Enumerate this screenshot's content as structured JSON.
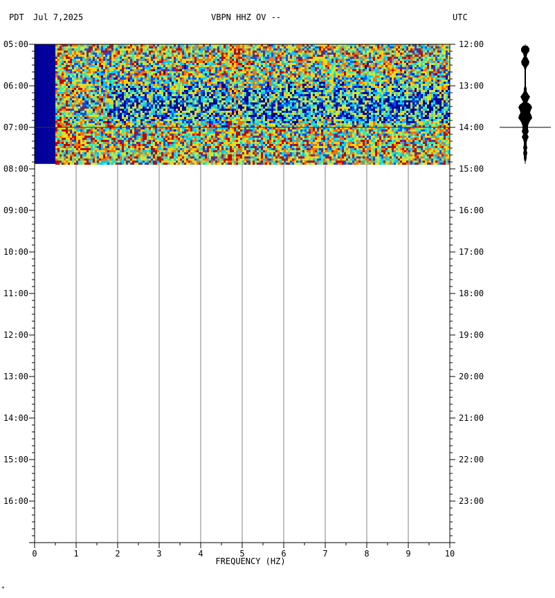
{
  "header": {
    "left_tz": "PDT",
    "date": "Jul 7,2025",
    "station": "VBPN HHZ OV --",
    "right_tz": "UTC"
  },
  "chart_data": {
    "type": "heatmap",
    "title": "VBPN HHZ OV --",
    "xlabel": "FREQUENCY (HZ)",
    "x_ticks": [
      "0",
      "1",
      "2",
      "3",
      "4",
      "5",
      "6",
      "7",
      "8",
      "9",
      "10"
    ],
    "xlim": [
      0,
      10
    ],
    "left_time_labels": [
      "05:00",
      "06:00",
      "07:00",
      "08:00",
      "09:00",
      "10:00",
      "11:00",
      "12:00",
      "13:00",
      "14:00",
      "15:00",
      "16:00"
    ],
    "right_time_labels": [
      "12:00",
      "13:00",
      "14:00",
      "15:00",
      "16:00",
      "17:00",
      "18:00",
      "19:00",
      "20:00",
      "21:00",
      "22:00",
      "23:00"
    ],
    "time_range_hours": [
      5,
      17
    ],
    "data_end_hour": 7.88,
    "marker_hour": 7.0,
    "low_freq_cutoff_hz": 0.5,
    "colormap": [
      "#00009a",
      "#0050ff",
      "#00c8ff",
      "#40e8b0",
      "#c8e840",
      "#ffd000",
      "#ff7000",
      "#c00000"
    ],
    "cutoff_color": "#00009c",
    "quiet_band": {
      "hour_center": 6.45,
      "freq_range": [
        1.8,
        10
      ]
    },
    "noisy_lines_hz": [
      4.8,
      0.6
    ]
  },
  "seismogram": {
    "amplitude": [
      3,
      6,
      6,
      3,
      2,
      4,
      6,
      5,
      2,
      1,
      1,
      1,
      1,
      1,
      1,
      1,
      2,
      2,
      4,
      7,
      5,
      3,
      8,
      10,
      8,
      7,
      9,
      10,
      7,
      5,
      4,
      4,
      5,
      3,
      5,
      3,
      2,
      2,
      3,
      2,
      3,
      2,
      2,
      1
    ],
    "marker_hour": 7.0
  }
}
